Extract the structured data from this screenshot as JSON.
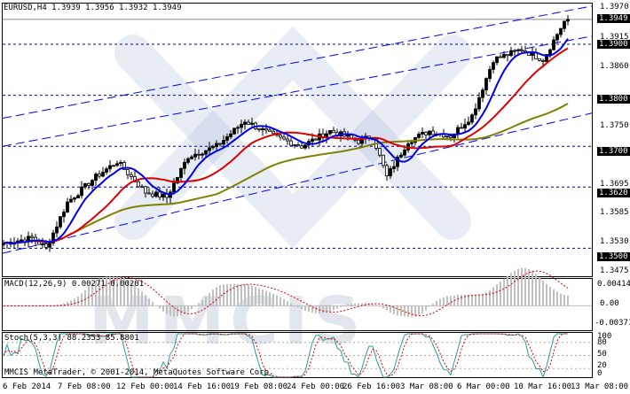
{
  "chart": {
    "title": "EURUSD,H4  1.3939 1.3956 1.3932 1.3949",
    "price_labels": [
      "1.3970",
      "1.3915",
      "1.3860",
      "1.3750",
      "1.3695",
      "1.3585",
      "1.3530",
      "1.3475"
    ],
    "level_labels": [
      "1.3949",
      "1.3900",
      "1.3800",
      "1.3700",
      "1.3620",
      "1.3500"
    ],
    "levels": [
      1.39,
      1.38,
      1.37,
      1.362,
      1.35
    ],
    "current_price": 1.3949,
    "y_range": [
      1.3445,
      1.398
    ],
    "up_color": "#000000",
    "down_color": "#ffffff",
    "ma_fast_color": "#0000ee",
    "ma_mid_color": "#dd0000",
    "ma_slow_color": "#808000",
    "channel_color": "#0000ff",
    "level_color": "#0000aa"
  },
  "macd": {
    "title": "MACD(12,26,9) 0.00271 0.00201",
    "labels": [
      "0.00414",
      "0.00",
      "-0.00371"
    ],
    "y_range": [
      -0.0045,
      0.0048
    ]
  },
  "stoch": {
    "title": "Stoch(5,3,3) 88.2353 85.8801",
    "labels": [
      "100",
      "80",
      "50",
      "20",
      "0"
    ],
    "levels": [
      80,
      50,
      20
    ]
  },
  "copyright": "MMCIS MetaTrader, © 2001-2014, MetaQuotes Software Corp.",
  "time_labels": [
    "6 Feb 2014",
    "7 Feb 08:00",
    "12 Feb 00:00",
    "14 Feb 16:00",
    "19 Feb 08:00",
    "24 Feb 00:00",
    "26 Feb 16:00",
    "3 Mar 08:00",
    "6 Mar 00:00",
    "10 Mar 16:00",
    "13 Mar 08:00"
  ],
  "watermark": "MMCIS"
}
